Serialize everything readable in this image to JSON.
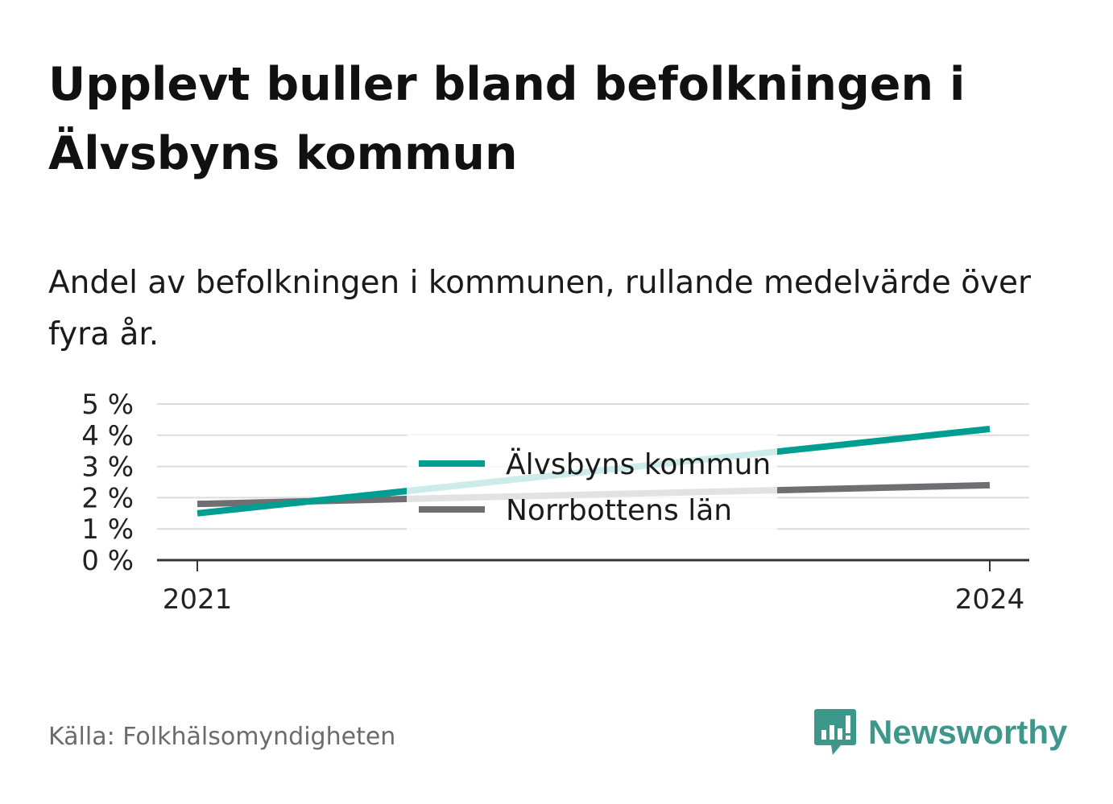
{
  "title": "Upplevt buller bland befolkningen i Älvsbyns kommun",
  "subtitle": "Andel av befolkningen i kommunen, rullande medelvärde över fyra år.",
  "source": "Källa: Folkhälsomyndigheten",
  "brand": {
    "name": "Newsworthy",
    "icon": "newsworthy-logo-icon",
    "color": "#3e978b"
  },
  "chart_data": {
    "type": "line",
    "title": "Upplevt buller bland befolkningen i Älvsbyns kommun",
    "subtitle": "Andel av befolkningen i kommunen, rullande medelvärde över fyra år.",
    "x": [
      2021,
      2024
    ],
    "x_tick_labels": [
      "2021",
      "2024"
    ],
    "y_tick_labels": [
      "0 %",
      "1 %",
      "2 %",
      "3 %",
      "4 %",
      "5 %"
    ],
    "ylim": [
      0,
      5
    ],
    "grid": true,
    "legend_position": "center",
    "series": [
      {
        "name": "Älvsbyns kommun",
        "color": "#009e91",
        "values": [
          1.5,
          4.2
        ]
      },
      {
        "name": "Norrbottens län",
        "color": "#6e6e73",
        "values": [
          1.8,
          2.4
        ]
      }
    ]
  }
}
